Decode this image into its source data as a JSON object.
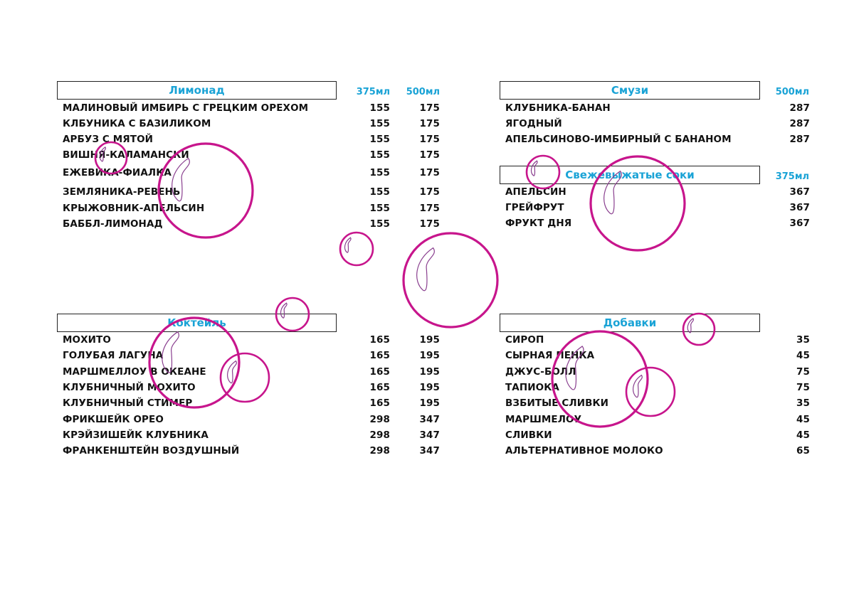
{
  "colors": {
    "accent": "#1aa3d6",
    "bubble": "#c7158c"
  },
  "lemonade": {
    "title": "Лимонад",
    "size1": "375мл",
    "size2": "500мл",
    "items": [
      {
        "name": "МАЛИНОВЫЙ ИМБИРЬ С ГРЕЦКИМ ОРЕХОМ",
        "p1": "155",
        "p2": "175"
      },
      {
        "name": "КЛБУНИКА С БАЗИЛИКОМ",
        "p1": "155",
        "p2": "175"
      },
      {
        "name": "АРБУЗ С МЯТОЙ",
        "p1": "155",
        "p2": "175"
      },
      {
        "name": "ВИШНЯ-КАЛАМАНСКИ",
        "p1": "155",
        "p2": "175"
      },
      {
        "name": "ЕЖЕВИКА-ФИАЛКА",
        "p1": "155",
        "p2": "175"
      },
      {
        "name": "ЗЕМЛЯНИКА-РЕВЕНЬ",
        "p1": "155",
        "p2": "175"
      },
      {
        "name": "КРЫЖОВНИК-АПЕЛЬСИН",
        "p1": "155",
        "p2": "175"
      },
      {
        "name": "БАББЛ-ЛИМОНАД",
        "p1": "155",
        "p2": "175"
      }
    ]
  },
  "smoothie": {
    "title": "Смузи",
    "size": "500мл",
    "items": [
      {
        "name": "КЛУБНИКА-БАНАН",
        "price": "287"
      },
      {
        "name": "ЯГОДНЫЙ",
        "price": "287"
      },
      {
        "name": "АПЕЛЬСИНОВО-ИМБИРНЫЙ С БАНАНОМ",
        "price": "287"
      }
    ]
  },
  "juices": {
    "title": "Свежевыжатые соки",
    "size": "375мл",
    "items": [
      {
        "name": "АПЕЛЬСИН",
        "price": "367"
      },
      {
        "name": "ГРЕЙФРУТ",
        "price": "367"
      },
      {
        "name": "ФРУКТ ДНЯ",
        "price": "367"
      }
    ]
  },
  "cocktail": {
    "title": "Коктейль",
    "items": [
      {
        "name": "МОХИТО",
        "p1": "165",
        "p2": "195"
      },
      {
        "name": "ГОЛУБАЯ ЛАГУНА",
        "p1": "165",
        "p2": "195"
      },
      {
        "name": "МАРШМЕЛЛОУ В ОКЕАНЕ",
        "p1": "165",
        "p2": "195"
      },
      {
        "name": "КЛУБНИЧНЫЙ МОХИТО",
        "p1": "165",
        "p2": "195"
      },
      {
        "name": "КЛУБНИЧНЫЙ СТИМЕР",
        "p1": "165",
        "p2": "195"
      },
      {
        "name": "ФРИКШЕЙК ОРЕО",
        "p1": "298",
        "p2": "347"
      },
      {
        "name": "КРЭЙЗИШЕЙК КЛУБНИКА",
        "p1": "298",
        "p2": "347"
      },
      {
        "name": "ФРАНКЕНШТЕЙН ВОЗДУШНЫЙ",
        "p1": "298",
        "p2": "347"
      }
    ]
  },
  "addons": {
    "title": "Добавки",
    "items": [
      {
        "name": "СИРОП",
        "price": "35"
      },
      {
        "name": "СЫРНАЯ ПЕНКА",
        "price": "45"
      },
      {
        "name": "ДЖУС-БОЛЛ",
        "price": "75"
      },
      {
        "name": "ТАПИОКА",
        "price": "75"
      },
      {
        "name": "ВЗБИТЫЕ СЛИВКИ",
        "price": "35"
      },
      {
        "name": "МАРШМЕЛОУ",
        "price": "45"
      },
      {
        "name": "СЛИВКИ",
        "price": "45"
      },
      {
        "name": "АЛЬТЕРНАТИВНОЕ МОЛОКО",
        "price": "65"
      }
    ]
  }
}
